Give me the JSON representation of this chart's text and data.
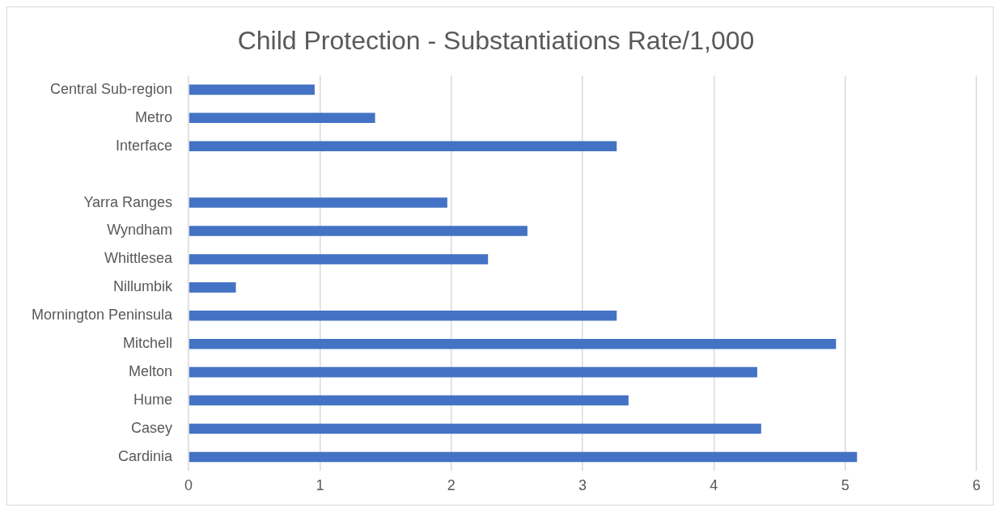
{
  "chart_data": {
    "type": "bar",
    "orientation": "horizontal",
    "title": "Child Protection - Substantiations Rate/1,000",
    "categories": [
      "Central Sub-region",
      "Metro",
      "Interface",
      null,
      "Yarra Ranges",
      "Wyndham",
      "Whittlesea",
      "Nillumbik",
      "Mornington Peninsula",
      "Mitchell",
      "Melton",
      "Hume",
      "Casey",
      "Cardinia"
    ],
    "values": [
      0.96,
      1.42,
      3.26,
      null,
      1.97,
      2.58,
      2.28,
      0.36,
      3.26,
      4.93,
      4.33,
      3.35,
      4.36,
      5.09
    ],
    "color": "#4472c4",
    "xlim": [
      0,
      6
    ],
    "xticks": [
      0,
      1,
      2,
      3,
      4,
      5,
      6
    ],
    "grid": "x",
    "legend": false
  }
}
